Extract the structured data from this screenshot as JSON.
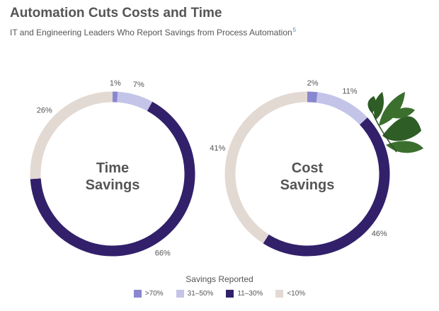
{
  "header": {
    "title": "Automation Cuts Costs and Time",
    "subtitle": "IT and Engineering Leaders Who Report Savings from Process Automation",
    "footnote": "5"
  },
  "legend": {
    "title": "Savings Reported",
    "items": [
      {
        "label": ">70%",
        "color": "#8a87d1"
      },
      {
        "label": "31–50%",
        "color": "#c3c4e8"
      },
      {
        "label": "11–30%",
        "color": "#32206b"
      },
      {
        "label": "<10%",
        "color": "#e3d9d3"
      }
    ]
  },
  "chart_data": [
    {
      "type": "pie",
      "title_lines": [
        "Time",
        "Savings"
      ],
      "categories": [
        ">70%",
        "31–50%",
        "11–30%",
        "<10%"
      ],
      "values": [
        1,
        7,
        66,
        26
      ],
      "value_labels": [
        "1%",
        "7%",
        "66%",
        "26%"
      ]
    },
    {
      "type": "pie",
      "title_lines": [
        "Cost",
        "Savings"
      ],
      "categories": [
        ">70%",
        "31–50%",
        "11–30%",
        "<10%"
      ],
      "values": [
        2,
        11,
        46,
        41
      ],
      "value_labels": [
        "2%",
        "11%",
        "46%",
        "41%"
      ]
    }
  ],
  "decoration": {
    "leaves_icon": "leaf-sprig-icon",
    "leaf_color": "#2e5d26"
  }
}
